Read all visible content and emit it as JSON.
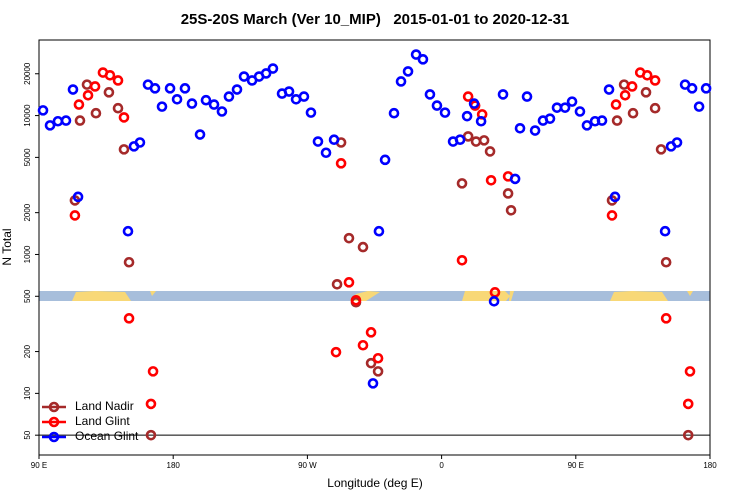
{
  "chart_data": {
    "type": "scatter",
    "title": "25S-20S March (Ver 10_MIP)   2015-01-01 to 2020-12-31",
    "x_label": "Longitude (deg E)",
    "y_label": "N Total",
    "xlim": [
      90,
      540
    ],
    "xticks": [
      {
        "value": 90,
        "label": "90 E"
      },
      {
        "value": 180,
        "label": "180"
      },
      {
        "value": 270,
        "label": "90 W"
      },
      {
        "value": 360,
        "label": "0"
      },
      {
        "value": 450,
        "label": "90 E"
      },
      {
        "value": 540,
        "label": "180"
      }
    ],
    "ylim": [
      36,
      35000
    ],
    "y_scale": "log",
    "yticks": [
      50,
      100,
      200,
      500,
      1000,
      2000,
      5000,
      10000,
      20000
    ],
    "reference_line": 50,
    "legend": "lower left",
    "series": [
      {
        "name": "Land Nadir",
        "color": "#a52a2a",
        "x": [
          114.1,
          117.5,
          122.2,
          128.2,
          136.9,
          143.0,
          147.0,
          150.4,
          165.1,
          289.9,
          292.6,
          297.9,
          302.6,
          307.3,
          312.7,
          317.4,
          373.7,
          377.8,
          383.1,
          388.5,
          392.5,
          404.6,
          406.6,
          474.3,
          477.7,
          482.4,
          488.4,
          497.1,
          503.2,
          507.2,
          510.6,
          525.4
        ],
        "values": [
          2450,
          9200,
          16700,
          10400,
          14700,
          11300,
          5710,
          879,
          50,
          610,
          6400,
          1310,
          453,
          1130,
          165,
          144,
          3250,
          7080,
          6500,
          6630,
          5520,
          2750,
          2080,
          2450,
          9200,
          16700,
          10400,
          14700,
          11300,
          5710,
          879,
          50
        ]
      },
      {
        "name": "Land Glint",
        "color": "#ff0000",
        "x": [
          114.1,
          116.8,
          122.9,
          127.6,
          132.9,
          137.6,
          143.0,
          147.0,
          150.4,
          165.1,
          166.5,
          289.2,
          292.6,
          297.9,
          302.6,
          307.3,
          312.7,
          317.4,
          373.7,
          377.8,
          382.5,
          387.2,
          393.2,
          395.8,
          404.6,
          474.3,
          477.0,
          483.1,
          487.8,
          493.2,
          497.9,
          503.2,
          510.6,
          525.4,
          526.6
        ],
        "values": [
          1910,
          12000,
          14000,
          16200,
          20400,
          19500,
          17900,
          9700,
          347,
          84,
          144,
          198,
          4530,
          630,
          468,
          222,
          275,
          179,
          908,
          13700,
          11800,
          10200,
          3420,
          534,
          3650,
          1910,
          12000,
          14000,
          16200,
          20400,
          19500,
          17900,
          347,
          84,
          144
        ]
      },
      {
        "name": "Ocean Glint",
        "color": "#0000ff",
        "x": [
          92.7,
          97.4,
          102.7,
          108.1,
          112.8,
          116.2,
          149.7,
          153.7,
          157.7,
          163.1,
          167.8,
          172.5,
          177.9,
          182.6,
          187.9,
          192.6,
          198.0,
          202.0,
          207.4,
          212.7,
          217.4,
          222.8,
          227.5,
          232.9,
          237.6,
          242.3,
          246.9,
          253.0,
          257.7,
          262.4,
          267.7,
          272.4,
          277.1,
          282.5,
          287.9,
          314.0,
          318.0,
          322.1,
          328.1,
          332.8,
          337.5,
          342.9,
          347.5,
          352.2,
          356.9,
          362.3,
          367.7,
          372.4,
          377.1,
          381.8,
          386.5,
          395.2,
          401.2,
          409.3,
          412.6,
          417.3,
          422.7,
          428.0,
          432.7,
          437.4,
          442.8,
          447.5,
          452.8,
          457.5,
          462.9,
          467.6,
          472.3,
          476.3,
          509.9,
          513.9,
          517.9,
          523.3,
          528.0,
          532.7,
          537.4
        ],
        "values": [
          10900,
          8500,
          9100,
          9200,
          15400,
          2600,
          1470,
          6000,
          6400,
          16700,
          15700,
          11600,
          15700,
          13100,
          15700,
          12200,
          7300,
          12900,
          12000,
          10700,
          13700,
          15400,
          19100,
          17900,
          19100,
          20100,
          21800,
          14400,
          14900,
          13100,
          13700,
          10500,
          6500,
          5400,
          6700,
          118,
          1470,
          4800,
          10400,
          17600,
          20800,
          27500,
          25400,
          14200,
          11800,
          10500,
          6500,
          6700,
          9900,
          12200,
          9100,
          460,
          14200,
          3500,
          8100,
          13700,
          7800,
          9200,
          9500,
          11400,
          11400,
          12600,
          10700,
          8500,
          9100,
          9200,
          15400,
          2600,
          1470,
          6000,
          6400,
          16700,
          15700,
          11600,
          15700
        ]
      }
    ]
  }
}
